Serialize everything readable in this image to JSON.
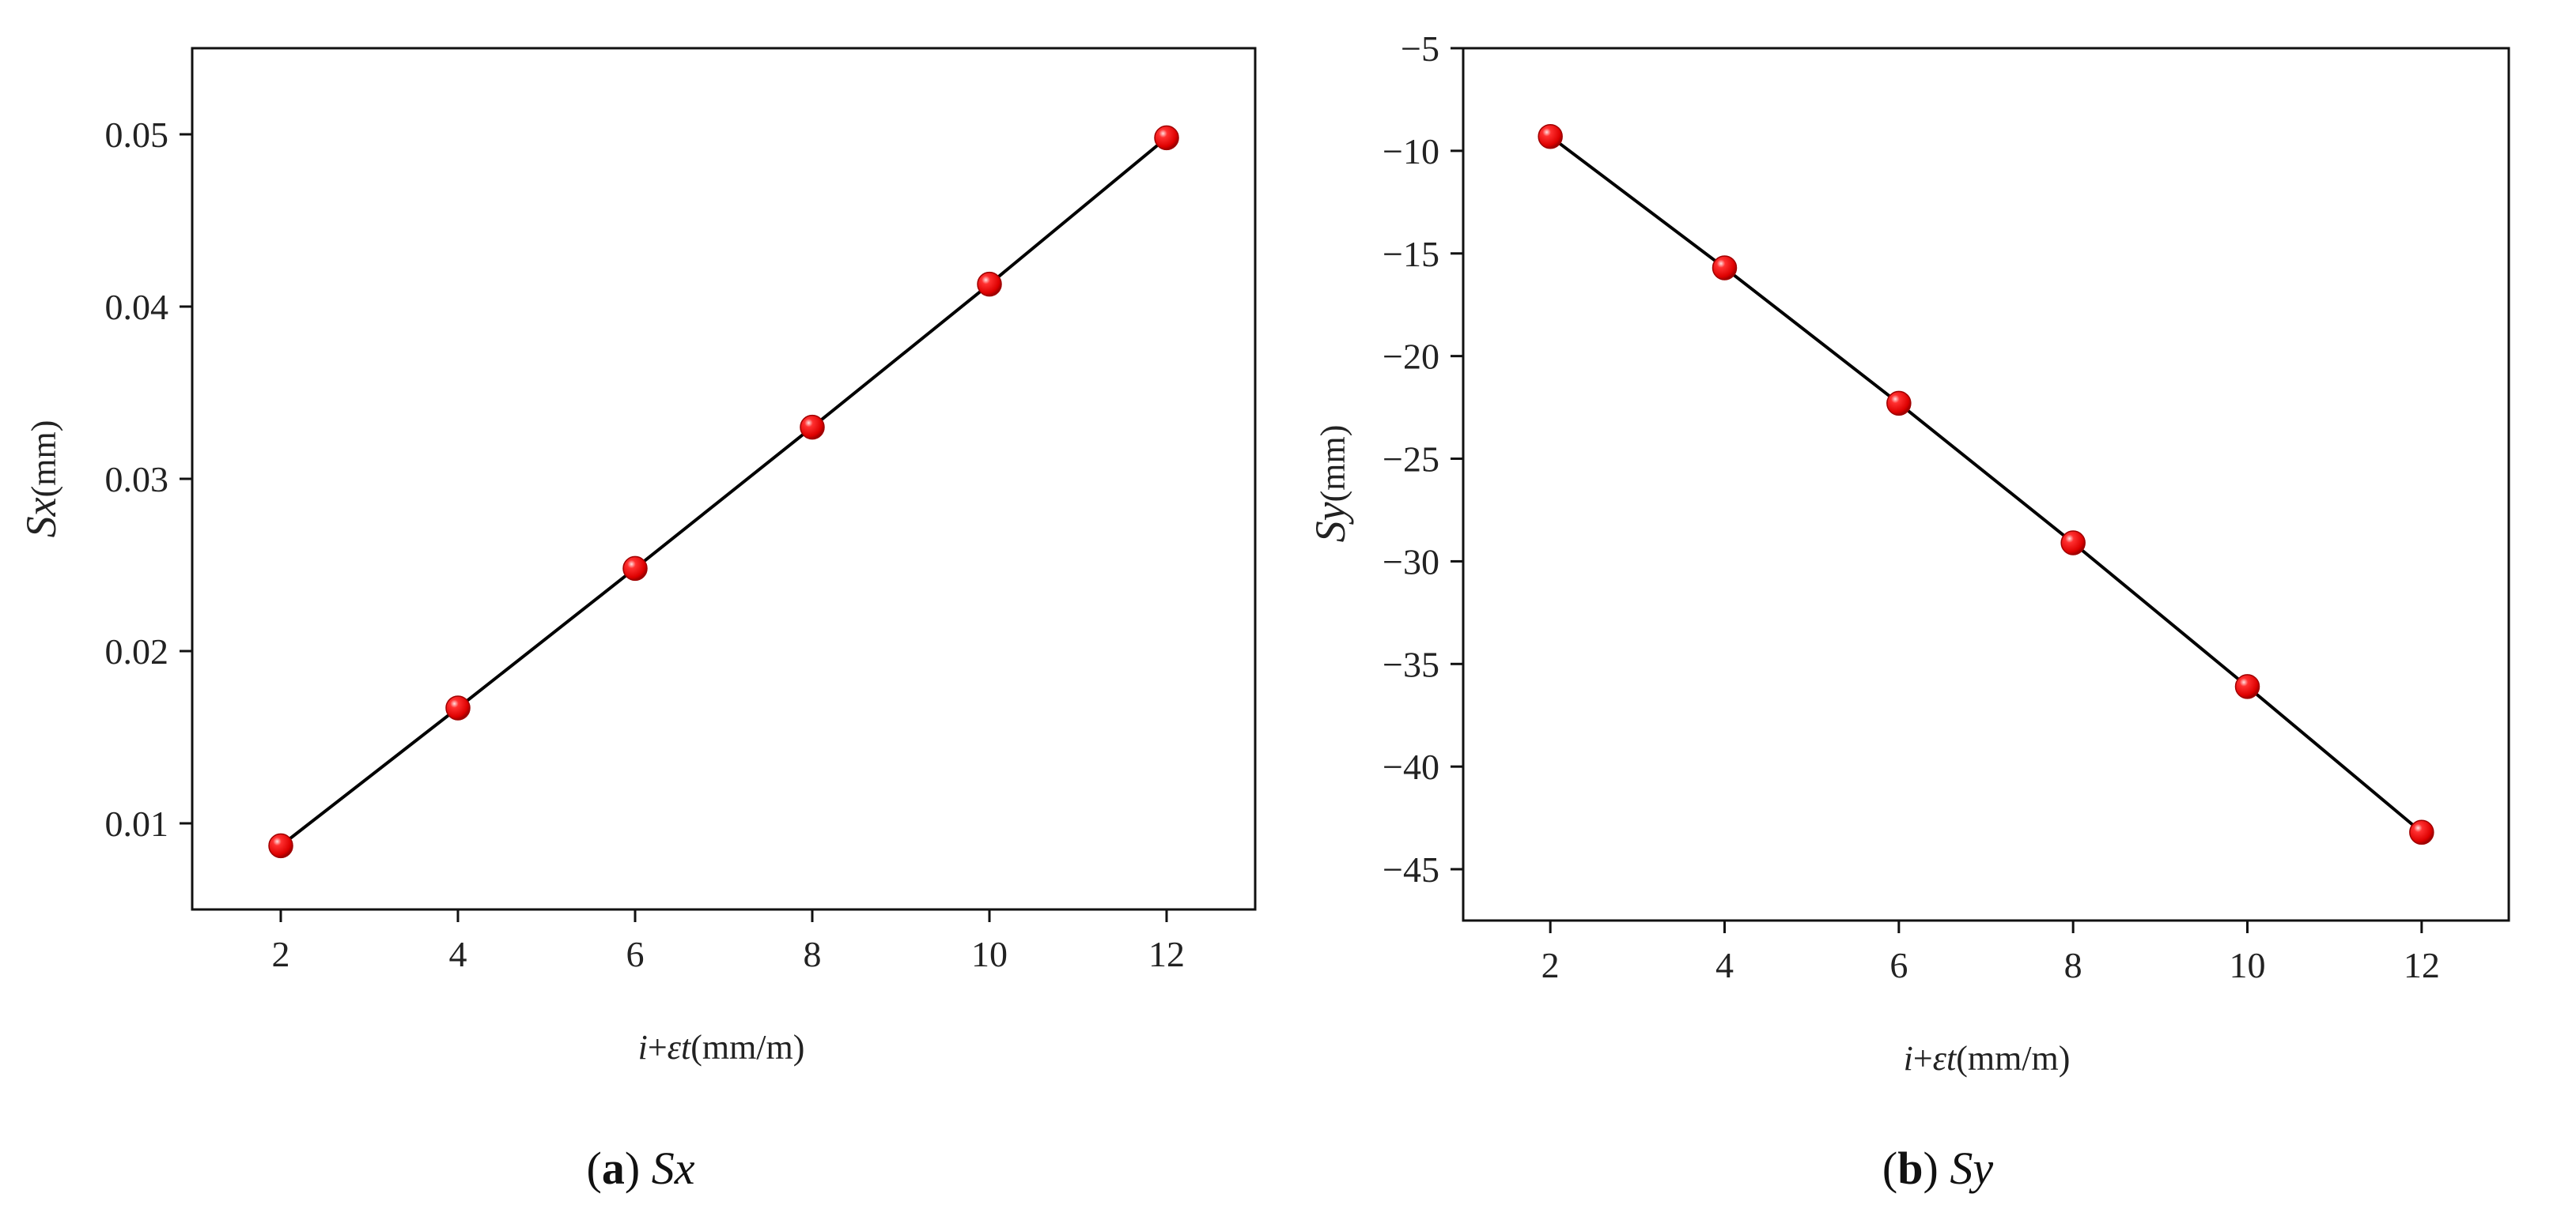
{
  "colors": {
    "line": "#000000",
    "marker": "#ee1111",
    "marker_highlight": "#ffd6d6",
    "marker_edge": "#a00000"
  },
  "chart_data": [
    {
      "type": "line",
      "panel": "a",
      "caption": {
        "letter": "a",
        "name": "Sx"
      },
      "xlabel": {
        "italic_i": "i",
        "plus": "+",
        "italic_eps_t": "εt",
        "unit": "(mm/m)"
      },
      "ylabel": {
        "italic": "Sx",
        "unit": "(mm)"
      },
      "x": [
        2,
        4,
        6,
        8,
        10,
        12
      ],
      "series": [
        {
          "values": [
            0.0087,
            0.0167,
            0.0248,
            0.033,
            0.0413,
            0.0498
          ]
        }
      ],
      "xlim": [
        1,
        13
      ],
      "ylim": [
        0.005,
        0.055
      ],
      "xticks": [
        2,
        4,
        6,
        8,
        10,
        12
      ],
      "xtick_labels": [
        "2",
        "4",
        "6",
        "8",
        "10",
        "12"
      ],
      "yticks": [
        0.01,
        0.02,
        0.03,
        0.04,
        0.05
      ],
      "ytick_labels": [
        "0.01",
        "0.02",
        "0.03",
        "0.04",
        "0.05"
      ],
      "grid": false,
      "marker": "sphere"
    },
    {
      "type": "line",
      "panel": "b",
      "caption": {
        "letter": "b",
        "name": "Sy"
      },
      "xlabel": {
        "italic_i": "i",
        "plus": "+",
        "italic_eps_t": "εt",
        "unit": "(mm/m)"
      },
      "ylabel": {
        "italic": "Sy",
        "unit": "(mm)"
      },
      "x": [
        2,
        4,
        6,
        8,
        10,
        12
      ],
      "series": [
        {
          "values": [
            -9.3,
            -15.7,
            -22.3,
            -29.1,
            -36.1,
            -43.2
          ]
        }
      ],
      "xlim": [
        1,
        13
      ],
      "ylim": [
        -47.5,
        -5
      ],
      "xticks": [
        2,
        4,
        6,
        8,
        10,
        12
      ],
      "xtick_labels": [
        "2",
        "4",
        "6",
        "8",
        "10",
        "12"
      ],
      "yticks": [
        -45,
        -40,
        -35,
        -30,
        -25,
        -20,
        -15,
        -10,
        -5
      ],
      "ytick_labels": [
        "−45",
        "−40",
        "−35",
        "−30",
        "−25",
        "−20",
        "−15",
        "−10",
        "−5"
      ],
      "grid": false,
      "marker": "sphere"
    }
  ]
}
